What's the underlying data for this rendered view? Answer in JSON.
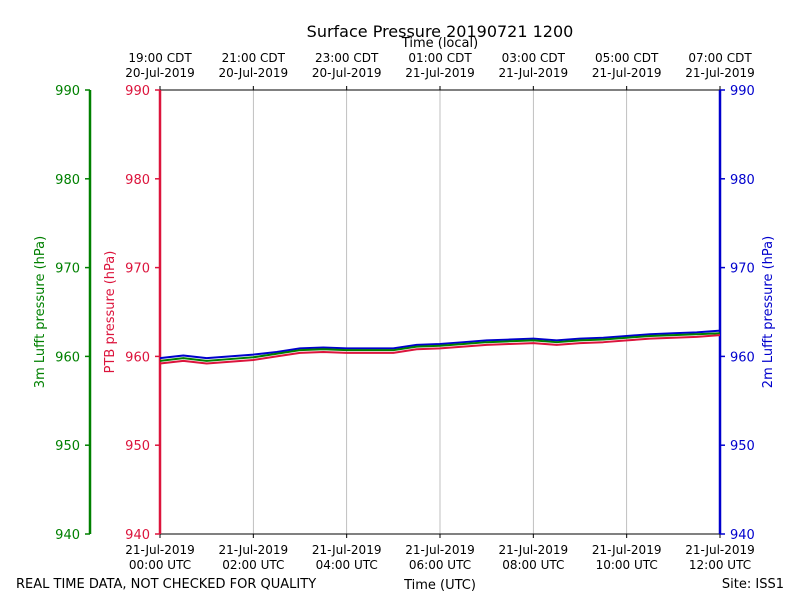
{
  "chart_data": {
    "type": "line",
    "title": "Surface Pressure 20190721 1200",
    "top_axis_label": "Time (local)",
    "top_ticks": [
      {
        "line1": "19:00 CDT",
        "line2": "20-Jul-2019"
      },
      {
        "line1": "21:00 CDT",
        "line2": "20-Jul-2019"
      },
      {
        "line1": "23:00 CDT",
        "line2": "20-Jul-2019"
      },
      {
        "line1": "01:00 CDT",
        "line2": "21-Jul-2019"
      },
      {
        "line1": "03:00 CDT",
        "line2": "21-Jul-2019"
      },
      {
        "line1": "05:00 CDT",
        "line2": "21-Jul-2019"
      },
      {
        "line1": "07:00 CDT",
        "line2": "21-Jul-2019"
      }
    ],
    "bottom_ticks": [
      {
        "line1": "21-Jul-2019",
        "line2": "00:00 UTC"
      },
      {
        "line1": "21-Jul-2019",
        "line2": "02:00 UTC"
      },
      {
        "line1": "21-Jul-2019",
        "line2": "04:00 UTC"
      },
      {
        "line1": "21-Jul-2019",
        "line2": "06:00 UTC"
      },
      {
        "line1": "21-Jul-2019",
        "line2": "08:00 UTC"
      },
      {
        "line1": "21-Jul-2019",
        "line2": "10:00 UTC"
      },
      {
        "line1": "21-Jul-2019",
        "line2": "12:00 UTC"
      }
    ],
    "xlabel": "Time (UTC)",
    "xlim": [
      0,
      12
    ],
    "x_tick_hours": [
      0,
      2,
      4,
      6,
      8,
      10,
      12
    ],
    "ylim": [
      940,
      990
    ],
    "y_ticks": [
      940,
      950,
      960,
      970,
      980,
      990
    ],
    "grid": "vertical",
    "axes": [
      {
        "label": "3m Lufft pressure (hPa)",
        "color": "#008000",
        "side": "far-left"
      },
      {
        "label": "PTB pressure (hPa)",
        "color": "#dc143c",
        "side": "left"
      },
      {
        "label": "2m Lufft pressure (hPa)",
        "color": "#0000cd",
        "side": "right"
      }
    ],
    "x": [
      0,
      0.5,
      1,
      1.5,
      2,
      2.5,
      3,
      3.5,
      4,
      4.5,
      5,
      5.5,
      6,
      6.5,
      7,
      7.5,
      8,
      8.5,
      9,
      9.5,
      10,
      10.5,
      11,
      11.5,
      12
    ],
    "series": [
      {
        "color": "#0000cd",
        "values": [
          959.8,
          960.1,
          959.8,
          960.0,
          960.2,
          960.5,
          960.9,
          961.0,
          960.9,
          960.9,
          960.9,
          961.3,
          961.4,
          961.6,
          961.8,
          961.9,
          962.0,
          961.8,
          962.0,
          962.1,
          962.3,
          962.5,
          962.6,
          962.7,
          962.9
        ]
      },
      {
        "color": "#008000",
        "values": [
          959.5,
          959.8,
          959.5,
          959.7,
          959.9,
          960.3,
          960.7,
          960.8,
          960.7,
          960.7,
          960.7,
          961.1,
          961.2,
          961.4,
          961.6,
          961.7,
          961.8,
          961.6,
          961.8,
          961.9,
          962.1,
          962.3,
          962.4,
          962.5,
          962.6
        ]
      },
      {
        "color": "#dc143c",
        "values": [
          959.2,
          959.5,
          959.2,
          959.4,
          959.6,
          960.0,
          960.4,
          960.5,
          960.4,
          960.4,
          960.4,
          960.8,
          960.9,
          961.1,
          961.3,
          961.4,
          961.5,
          961.3,
          961.5,
          961.6,
          961.8,
          962.0,
          962.1,
          962.2,
          962.4
        ]
      }
    ]
  },
  "footer": {
    "disclaimer": "REAL TIME DATA, NOT CHECKED FOR QUALITY",
    "site": "Site: ISS1"
  }
}
